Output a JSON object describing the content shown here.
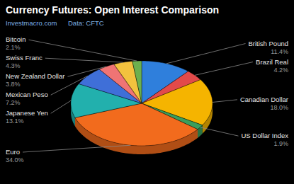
{
  "chart_data": {
    "type": "pie",
    "title": "Currency Futures: Open Interest Comparison",
    "annotations": [
      "Investmacro.com",
      "Data: CFTC"
    ],
    "categories": [
      "British Pound",
      "Brazil Real",
      "Canadian Dollar",
      "US Dollar Index",
      "Euro",
      "Japanese Yen",
      "Mexican Peso",
      "New Zealand Dollar",
      "Swiss Franc",
      "Bitcoin"
    ],
    "values": [
      11.4,
      4.2,
      18.0,
      1.9,
      34.0,
      13.1,
      7.2,
      3.8,
      4.3,
      2.1
    ],
    "value_labels": [
      "11.4%",
      "4.2%",
      "18.0%",
      "1.9%",
      "34.0%",
      "13.1%",
      "7.2%",
      "3.8%",
      "4.3%",
      "2.1%"
    ],
    "colors": [
      "#2f7fdc",
      "#e24a4a",
      "#f5b400",
      "#3a9e5c",
      "#f26b1d",
      "#22b0ad",
      "#3f6fd8",
      "#f07474",
      "#f3c23e",
      "#6cb04e"
    ],
    "data_labels": true
  }
}
